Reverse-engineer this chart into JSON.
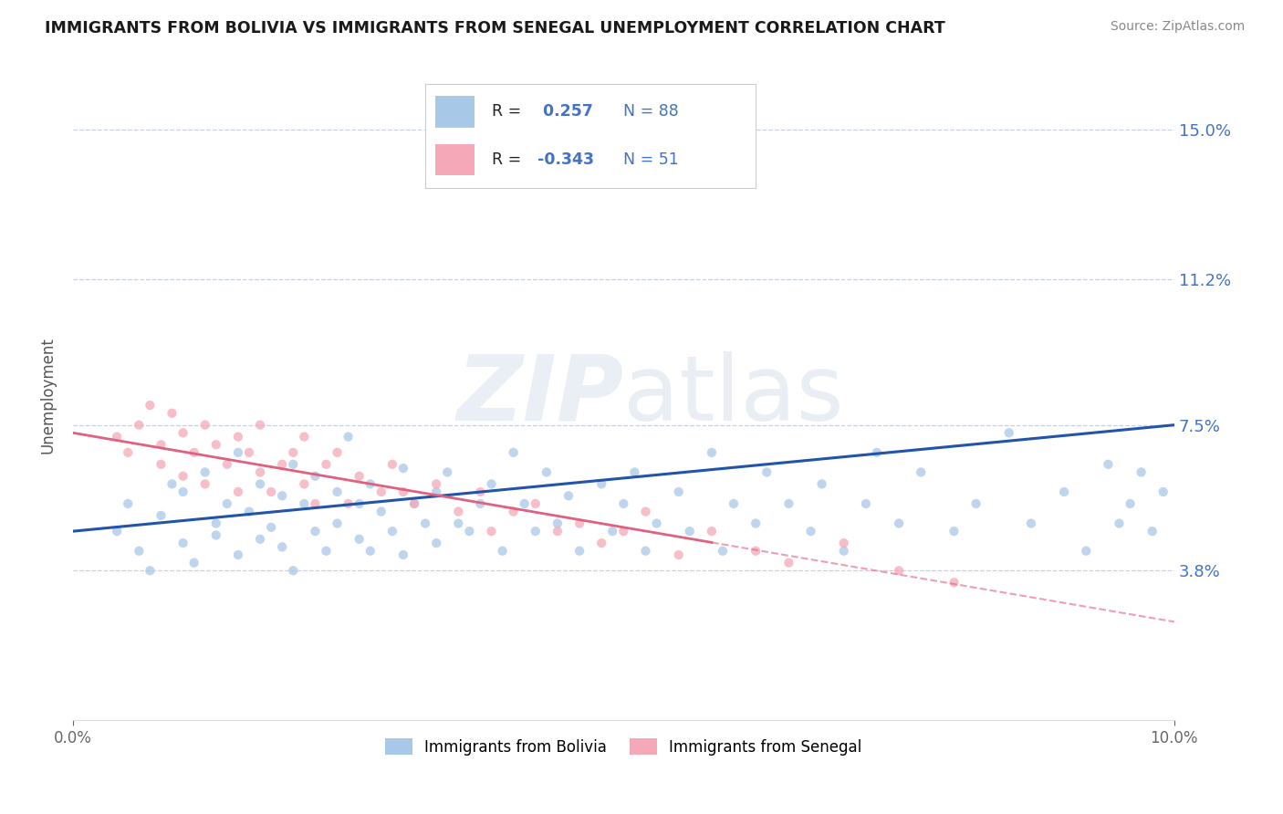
{
  "title": "IMMIGRANTS FROM BOLIVIA VS IMMIGRANTS FROM SENEGAL UNEMPLOYMENT CORRELATION CHART",
  "source": "Source: ZipAtlas.com",
  "ylabel": "Unemployment",
  "xlim": [
    0.0,
    0.1
  ],
  "ylim": [
    0.0,
    0.165
  ],
  "yticks": [
    0.038,
    0.075,
    0.112,
    0.15
  ],
  "ytick_labels": [
    "3.8%",
    "7.5%",
    "11.2%",
    "15.0%"
  ],
  "bolivia_color": "#a8c8e8",
  "senegal_color": "#f4a8b8",
  "bolivia_line_color": "#2255aa",
  "senegal_line_color": "#e06080",
  "R_bolivia": 0.257,
  "N_bolivia": 88,
  "R_senegal": -0.343,
  "N_senegal": 51,
  "bolivia_x": [
    0.004,
    0.005,
    0.006,
    0.007,
    0.008,
    0.009,
    0.01,
    0.01,
    0.011,
    0.012,
    0.013,
    0.013,
    0.014,
    0.015,
    0.015,
    0.016,
    0.017,
    0.017,
    0.018,
    0.019,
    0.019,
    0.02,
    0.02,
    0.021,
    0.022,
    0.022,
    0.023,
    0.024,
    0.024,
    0.025,
    0.026,
    0.026,
    0.027,
    0.027,
    0.028,
    0.029,
    0.03,
    0.03,
    0.031,
    0.032,
    0.033,
    0.033,
    0.034,
    0.035,
    0.036,
    0.037,
    0.038,
    0.039,
    0.04,
    0.041,
    0.042,
    0.043,
    0.044,
    0.045,
    0.046,
    0.048,
    0.049,
    0.05,
    0.051,
    0.052,
    0.053,
    0.055,
    0.056,
    0.058,
    0.059,
    0.06,
    0.062,
    0.063,
    0.065,
    0.067,
    0.068,
    0.07,
    0.072,
    0.073,
    0.075,
    0.077,
    0.08,
    0.082,
    0.085,
    0.087,
    0.09,
    0.092,
    0.094,
    0.095,
    0.096,
    0.097,
    0.098,
    0.099
  ],
  "bolivia_y": [
    0.048,
    0.055,
    0.043,
    0.038,
    0.052,
    0.06,
    0.045,
    0.058,
    0.04,
    0.063,
    0.05,
    0.047,
    0.055,
    0.068,
    0.042,
    0.053,
    0.046,
    0.06,
    0.049,
    0.057,
    0.044,
    0.065,
    0.038,
    0.055,
    0.048,
    0.062,
    0.043,
    0.058,
    0.05,
    0.072,
    0.046,
    0.055,
    0.06,
    0.043,
    0.053,
    0.048,
    0.064,
    0.042,
    0.055,
    0.05,
    0.058,
    0.045,
    0.063,
    0.05,
    0.048,
    0.055,
    0.06,
    0.043,
    0.068,
    0.055,
    0.048,
    0.063,
    0.05,
    0.057,
    0.043,
    0.06,
    0.048,
    0.055,
    0.063,
    0.043,
    0.05,
    0.058,
    0.048,
    0.068,
    0.043,
    0.055,
    0.05,
    0.063,
    0.055,
    0.048,
    0.06,
    0.043,
    0.055,
    0.068,
    0.05,
    0.063,
    0.048,
    0.055,
    0.073,
    0.05,
    0.058,
    0.043,
    0.065,
    0.05,
    0.055,
    0.063,
    0.048,
    0.058
  ],
  "senegal_x": [
    0.004,
    0.005,
    0.006,
    0.007,
    0.008,
    0.008,
    0.009,
    0.01,
    0.01,
    0.011,
    0.012,
    0.012,
    0.013,
    0.014,
    0.015,
    0.015,
    0.016,
    0.017,
    0.017,
    0.018,
    0.019,
    0.02,
    0.021,
    0.021,
    0.022,
    0.023,
    0.024,
    0.025,
    0.026,
    0.028,
    0.029,
    0.03,
    0.031,
    0.033,
    0.035,
    0.037,
    0.038,
    0.04,
    0.042,
    0.044,
    0.046,
    0.048,
    0.05,
    0.052,
    0.055,
    0.058,
    0.062,
    0.065,
    0.07,
    0.075,
    0.08
  ],
  "senegal_y": [
    0.072,
    0.068,
    0.075,
    0.08,
    0.065,
    0.07,
    0.078,
    0.062,
    0.073,
    0.068,
    0.075,
    0.06,
    0.07,
    0.065,
    0.072,
    0.058,
    0.068,
    0.063,
    0.075,
    0.058,
    0.065,
    0.068,
    0.06,
    0.072,
    0.055,
    0.065,
    0.068,
    0.055,
    0.062,
    0.058,
    0.065,
    0.058,
    0.055,
    0.06,
    0.053,
    0.058,
    0.048,
    0.053,
    0.055,
    0.048,
    0.05,
    0.045,
    0.048,
    0.053,
    0.042,
    0.048,
    0.043,
    0.04,
    0.045,
    0.038,
    0.035
  ],
  "bolivia_intercept": 0.048,
  "bolivia_slope": 0.27,
  "senegal_intercept": 0.073,
  "senegal_slope": -0.48
}
